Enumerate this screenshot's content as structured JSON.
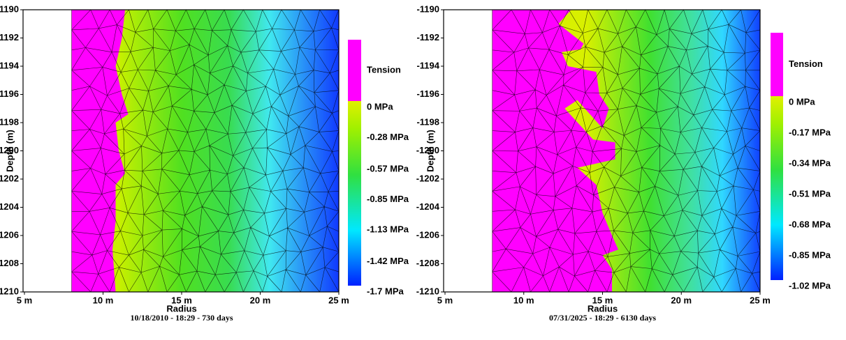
{
  "chart_data": [
    {
      "type": "contour",
      "xlabel": "Radius",
      "ylabel": "Depth (m)",
      "caption": "10/18/2010 - 18:29 - 730 days",
      "xlim": [
        5,
        25
      ],
      "xticks": [
        {
          "value": 5,
          "label": "5 m"
        },
        {
          "value": 10,
          "label": "10 m"
        },
        {
          "value": 15,
          "label": "15 m"
        },
        {
          "value": 20,
          "label": "20 m"
        },
        {
          "value": 25,
          "label": "25 m"
        }
      ],
      "ylim": [
        -1210,
        -1190
      ],
      "yticks": [
        -1190,
        -1192,
        -1194,
        -1196,
        -1198,
        -1200,
        -1202,
        -1204,
        -1206,
        -1208,
        -1210
      ],
      "colorbar": {
        "label": "Tension",
        "clim": [
          -1.7,
          0
        ],
        "ticks": [
          {
            "value": 0,
            "label": "0 MPa"
          },
          {
            "value": -0.28,
            "label": "-0.28 MPa"
          },
          {
            "value": -0.57,
            "label": "-0.57 MPa"
          },
          {
            "value": -0.85,
            "label": "-0.85 MPa"
          },
          {
            "value": -1.13,
            "label": "-1.13 MPa"
          },
          {
            "value": -1.42,
            "label": "-1.42 MPa"
          },
          {
            "value": -1.7,
            "label": "-1.7 MPa"
          }
        ]
      }
    },
    {
      "type": "contour",
      "xlabel": "Radius",
      "ylabel": "Depth (m)",
      "caption": "07/31/2025 - 18:29 - 6130 days",
      "xlim": [
        5,
        25
      ],
      "xticks": [
        {
          "value": 5,
          "label": "5 m"
        },
        {
          "value": 10,
          "label": "10 m"
        },
        {
          "value": 15,
          "label": "15 m"
        },
        {
          "value": 20,
          "label": "20 m"
        },
        {
          "value": 25,
          "label": "25 m"
        }
      ],
      "ylim": [
        -1210,
        -1190
      ],
      "yticks": [
        -1190,
        -1192,
        -1194,
        -1196,
        -1198,
        -1200,
        -1202,
        -1204,
        -1206,
        -1208,
        -1210
      ],
      "colorbar": {
        "label": "Tension",
        "clim": [
          -1.02,
          0
        ],
        "ticks": [
          {
            "value": 0,
            "label": "0 MPa"
          },
          {
            "value": -0.17,
            "label": "-0.17 MPa"
          },
          {
            "value": -0.34,
            "label": "-0.34 MPa"
          },
          {
            "value": -0.51,
            "label": "-0.51 MPa"
          },
          {
            "value": -0.68,
            "label": "-0.68 MPa"
          },
          {
            "value": -0.85,
            "label": "-0.85 MPa"
          },
          {
            "value": -1.02,
            "label": "-1.02 MPa"
          }
        ]
      }
    }
  ]
}
